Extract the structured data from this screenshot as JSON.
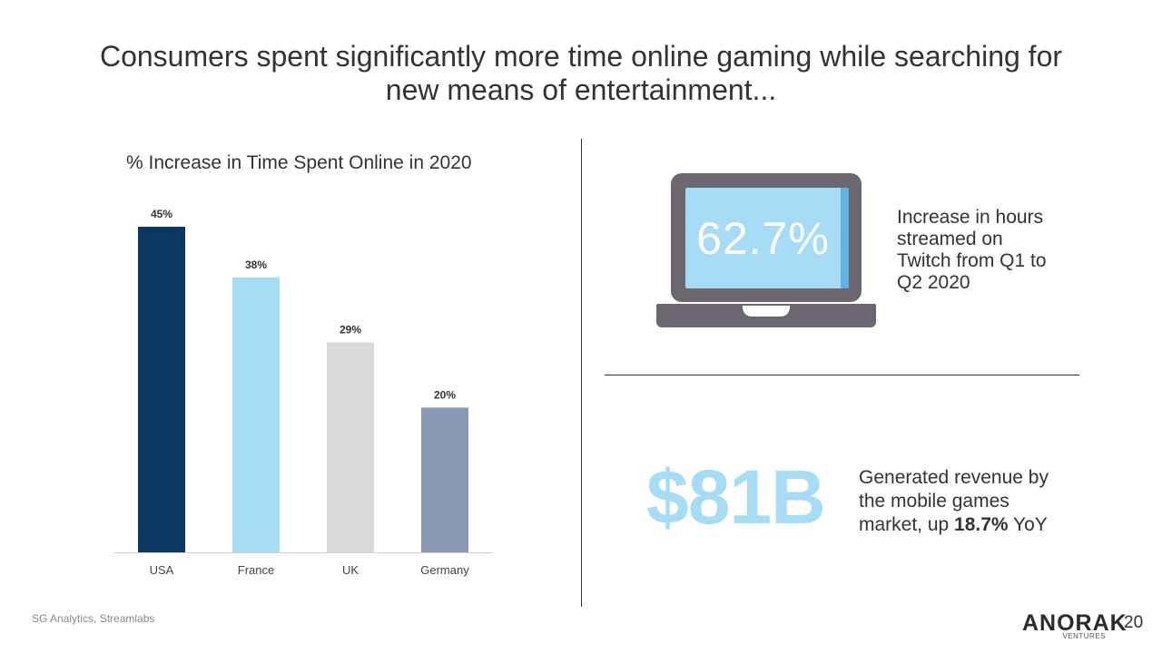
{
  "title": "Consumers spent significantly more time online gaming while searching for new means of entertainment...",
  "chart_data": {
    "type": "bar",
    "title": "% Increase in Time Spent Online in 2020",
    "categories": [
      "USA",
      "France",
      "UK",
      "Germany"
    ],
    "values": [
      45,
      38,
      29,
      20
    ],
    "value_labels": [
      "45%",
      "38%",
      "29%",
      "20%"
    ],
    "colors": [
      "#0b3761",
      "#a6dcf5",
      "#d9d9d9",
      "#8799b3"
    ],
    "ylim": [
      0,
      50
    ],
    "xlabel": "",
    "ylabel": "",
    "grid": false,
    "legend": "none"
  },
  "stat1": {
    "value": "62.7%",
    "description": "Increase in hours streamed on Twitch from Q1 to Q2 2020",
    "icon": "laptop-icon"
  },
  "stat2": {
    "value": "$81B",
    "description_pre": "Generated revenue by the mobile games market, up ",
    "description_bold": "18.7%",
    "description_post": " YoY"
  },
  "source": "SG Analytics, Streamlabs",
  "logo": {
    "word": "ANORAK",
    "sub": "VENTURES"
  },
  "page_number": "20",
  "colors": {
    "accent": "#a6dcf5",
    "dark_blue": "#0b3761",
    "text": "#333333"
  }
}
